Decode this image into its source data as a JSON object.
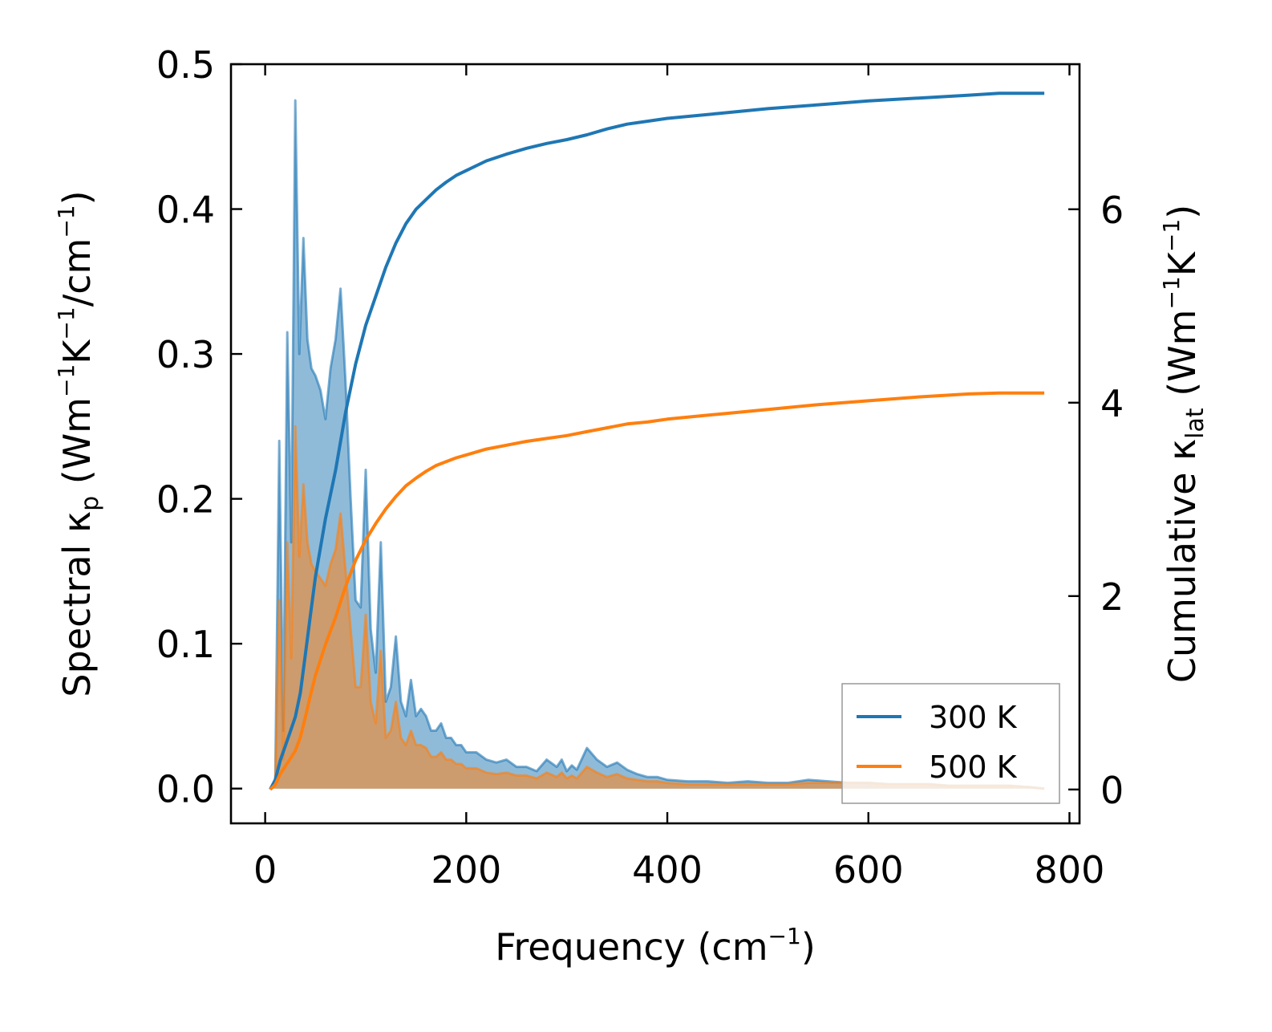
{
  "chart_data": {
    "type": "line",
    "title": "",
    "xlabel": "Frequency (cm⁻¹)",
    "ylabel_left": "Spectral κₚ (Wm⁻¹K⁻¹/cm⁻¹)",
    "ylabel_right": "Cumulative κ_lat (Wm⁻¹K⁻¹)",
    "xlim": [
      -34,
      810
    ],
    "ylim_left": [
      -0.024,
      0.5
    ],
    "ylim_right": [
      -0.35,
      7.5
    ],
    "x_ticks": [
      0,
      200,
      400,
      600,
      800
    ],
    "y_left_ticks": [
      0.0,
      0.1,
      0.2,
      0.3,
      0.4,
      0.5
    ],
    "y_right_ticks": [
      0,
      2,
      4,
      6
    ],
    "legend": {
      "placement": "bottom-right",
      "entries": [
        "300 K",
        "500 K"
      ]
    },
    "colors": {
      "s300": "#1f77b4",
      "s500": "#ff7f0e",
      "fill300": "#1f77b4",
      "fill500": "#e0914a"
    },
    "spectral": [
      {
        "name": "300 K",
        "x": [
          5,
          10,
          14,
          18,
          22,
          26,
          30,
          34,
          38,
          42,
          46,
          50,
          55,
          60,
          65,
          70,
          75,
          80,
          85,
          90,
          95,
          100,
          105,
          110,
          115,
          120,
          125,
          130,
          135,
          140,
          145,
          150,
          155,
          160,
          165,
          170,
          175,
          180,
          185,
          190,
          195,
          200,
          210,
          220,
          230,
          240,
          250,
          260,
          270,
          280,
          290,
          295,
          300,
          305,
          310,
          320,
          330,
          340,
          350,
          360,
          370,
          380,
          390,
          400,
          420,
          440,
          460,
          480,
          500,
          520,
          540,
          560,
          580,
          600,
          620,
          640,
          660,
          680,
          700,
          720,
          740,
          760,
          775
        ],
        "y": [
          0.0,
          0.005,
          0.24,
          0.04,
          0.315,
          0.17,
          0.475,
          0.3,
          0.38,
          0.31,
          0.29,
          0.285,
          0.275,
          0.255,
          0.29,
          0.31,
          0.345,
          0.28,
          0.2,
          0.13,
          0.125,
          0.22,
          0.11,
          0.08,
          0.17,
          0.06,
          0.07,
          0.105,
          0.06,
          0.05,
          0.075,
          0.05,
          0.055,
          0.05,
          0.04,
          0.04,
          0.045,
          0.035,
          0.035,
          0.03,
          0.03,
          0.025,
          0.025,
          0.02,
          0.018,
          0.02,
          0.015,
          0.015,
          0.012,
          0.02,
          0.015,
          0.02,
          0.012,
          0.016,
          0.013,
          0.028,
          0.02,
          0.015,
          0.018,
          0.013,
          0.01,
          0.008,
          0.008,
          0.006,
          0.005,
          0.005,
          0.004,
          0.005,
          0.004,
          0.004,
          0.006,
          0.005,
          0.004,
          0.004,
          0.003,
          0.003,
          0.003,
          0.002,
          0.002,
          0.002,
          0.002,
          0.001,
          0.0
        ]
      },
      {
        "name": "500 K",
        "x": [
          5,
          10,
          14,
          18,
          22,
          26,
          30,
          34,
          38,
          42,
          46,
          50,
          55,
          60,
          65,
          70,
          75,
          80,
          85,
          90,
          95,
          100,
          105,
          110,
          115,
          120,
          125,
          130,
          135,
          140,
          145,
          150,
          155,
          160,
          165,
          170,
          175,
          180,
          185,
          190,
          195,
          200,
          210,
          220,
          230,
          240,
          250,
          260,
          270,
          280,
          290,
          295,
          300,
          305,
          310,
          320,
          330,
          340,
          350,
          360,
          370,
          380,
          390,
          400,
          420,
          440,
          460,
          480,
          500,
          520,
          540,
          560,
          580,
          600,
          620,
          640,
          660,
          680,
          700,
          720,
          740,
          760,
          775
        ],
        "y": [
          0.0,
          0.003,
          0.13,
          0.02,
          0.17,
          0.09,
          0.25,
          0.16,
          0.21,
          0.17,
          0.155,
          0.15,
          0.145,
          0.14,
          0.155,
          0.165,
          0.19,
          0.15,
          0.11,
          0.07,
          0.07,
          0.12,
          0.06,
          0.045,
          0.095,
          0.035,
          0.04,
          0.06,
          0.035,
          0.03,
          0.04,
          0.03,
          0.03,
          0.028,
          0.022,
          0.022,
          0.025,
          0.02,
          0.02,
          0.017,
          0.017,
          0.014,
          0.014,
          0.011,
          0.01,
          0.011,
          0.009,
          0.009,
          0.007,
          0.011,
          0.008,
          0.011,
          0.007,
          0.009,
          0.007,
          0.015,
          0.011,
          0.008,
          0.01,
          0.007,
          0.006,
          0.005,
          0.005,
          0.004,
          0.003,
          0.003,
          0.003,
          0.003,
          0.003,
          0.003,
          0.004,
          0.004,
          0.004,
          0.004,
          0.003,
          0.003,
          0.003,
          0.002,
          0.002,
          0.002,
          0.002,
          0.001,
          0.0
        ]
      }
    ],
    "cumulative": [
      {
        "name": "300 K",
        "x": [
          5,
          10,
          15,
          20,
          25,
          30,
          35,
          40,
          45,
          50,
          60,
          70,
          80,
          90,
          100,
          110,
          120,
          130,
          140,
          150,
          160,
          170,
          180,
          190,
          200,
          220,
          240,
          260,
          280,
          300,
          320,
          340,
          360,
          380,
          400,
          450,
          500,
          550,
          600,
          650,
          700,
          730,
          775
        ],
        "y": [
          0.0,
          0.1,
          0.3,
          0.45,
          0.6,
          0.75,
          1.0,
          1.4,
          1.8,
          2.2,
          2.8,
          3.3,
          3.9,
          4.4,
          4.8,
          5.1,
          5.4,
          5.65,
          5.85,
          6.0,
          6.1,
          6.2,
          6.28,
          6.35,
          6.4,
          6.5,
          6.57,
          6.63,
          6.68,
          6.72,
          6.77,
          6.83,
          6.88,
          6.91,
          6.94,
          6.99,
          7.04,
          7.08,
          7.12,
          7.15,
          7.18,
          7.2,
          7.2
        ]
      },
      {
        "name": "500 K",
        "x": [
          5,
          10,
          15,
          20,
          25,
          30,
          35,
          40,
          45,
          50,
          60,
          70,
          80,
          90,
          100,
          110,
          120,
          130,
          140,
          150,
          160,
          170,
          180,
          190,
          200,
          220,
          240,
          260,
          280,
          300,
          320,
          340,
          360,
          380,
          400,
          450,
          500,
          550,
          600,
          650,
          700,
          730,
          775
        ],
        "y": [
          0.0,
          0.05,
          0.16,
          0.24,
          0.32,
          0.4,
          0.54,
          0.75,
          0.97,
          1.18,
          1.5,
          1.78,
          2.1,
          2.37,
          2.58,
          2.75,
          2.9,
          3.03,
          3.14,
          3.22,
          3.29,
          3.35,
          3.39,
          3.43,
          3.46,
          3.52,
          3.56,
          3.6,
          3.63,
          3.66,
          3.7,
          3.74,
          3.78,
          3.8,
          3.83,
          3.88,
          3.93,
          3.98,
          4.02,
          4.06,
          4.09,
          4.1,
          4.1
        ]
      }
    ]
  }
}
